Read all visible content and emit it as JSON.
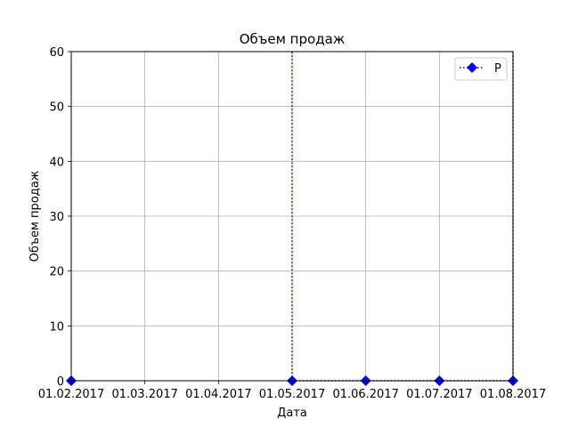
{
  "chart_data": {
    "type": "line",
    "title": "Объем продаж",
    "xlabel": "Дата",
    "ylabel": "Объем продаж",
    "x_ticks": [
      "01.02.2017",
      "01.03.2017",
      "01.04.2017",
      "01.05.2017",
      "01.06.2017",
      "01.07.2017",
      "01.08.2017"
    ],
    "ylim": [
      0,
      60
    ],
    "y_ticks": [
      0,
      10,
      20,
      30,
      40,
      50,
      60
    ],
    "grid": true,
    "legend_position": "top-right",
    "series": [
      {
        "name": "Р",
        "color": "#0000ff",
        "line_style": "dotted",
        "marker": "diamond",
        "x": [
          "01.02.2017",
          "01.05.2017",
          "01.06.2017",
          "01.07.2017",
          "01.08.2017"
        ],
        "values": [
          0,
          0,
          0,
          0,
          0
        ],
        "spikes": [
          {
            "x": "01.05.2017",
            "value": 60
          },
          {
            "x": "01.08.2017",
            "value": 60
          }
        ]
      }
    ]
  }
}
